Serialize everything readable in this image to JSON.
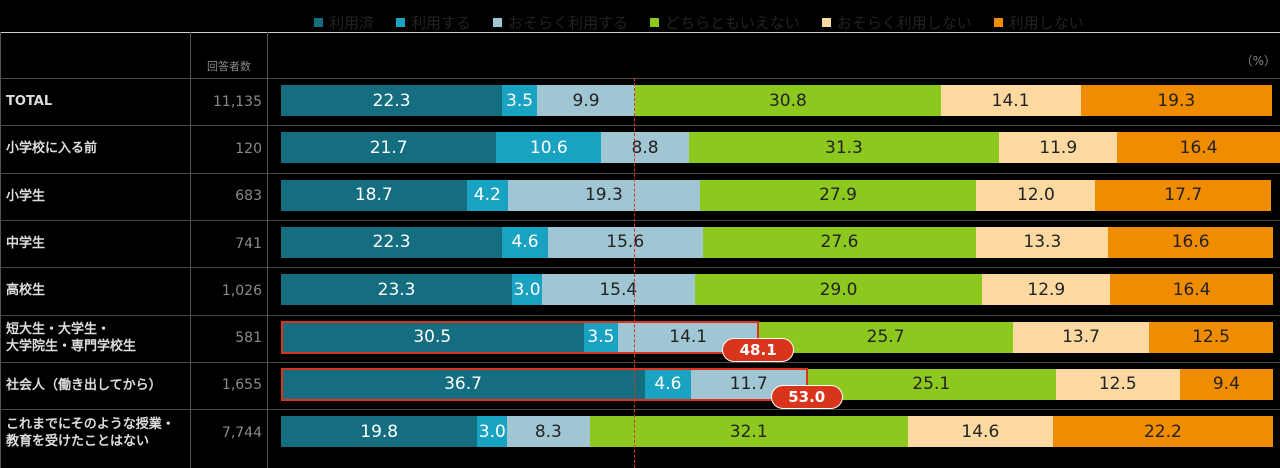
{
  "chart_data": {
    "type": "stacked_bar_horizontal",
    "count_header": "回答者数",
    "unit": "（%）",
    "categories": [
      "TOTAL",
      "小学校に入る前",
      "小学生",
      "中学生",
      "高校生",
      "短大生・大学生・\n大学院生・専門学校生",
      "社会人（働き出してから）",
      "これまでにそのような授業・\n教育を受けたことはない"
    ],
    "respondents": [
      {
        "value": 11135,
        "label": "11,135"
      },
      120,
      683,
      741,
      {
        "value": 1026,
        "label": "1,026"
      },
      581,
      {
        "value": 1655,
        "label": "1,655"
      },
      {
        "value": 7744,
        "label": "7,744"
      }
    ],
    "xlim": [
      0,
      100
    ],
    "series": [
      {
        "name": "利用済",
        "color": "#156d80",
        "values": [
          22.3,
          21.7,
          18.7,
          22.3,
          23.3,
          30.5,
          36.7,
          19.8
        ],
        "value_labels": [
          "22.3",
          "21.7",
          "18.7",
          "22.3",
          "23.3",
          "30.5",
          "36.7",
          "19.8"
        ]
      },
      {
        "name": "利用する",
        "color": "#1aa2c2",
        "values": [
          3.5,
          10.6,
          4.2,
          4.6,
          3.0,
          3.5,
          4.6,
          3.0
        ],
        "value_labels": [
          "3.5",
          "10.6",
          "4.2",
          "4.6",
          "3.0",
          "3.5",
          "4.6",
          "3.0"
        ]
      },
      {
        "name": "おそらく利用する",
        "color": "#9fc6d2",
        "values": [
          9.9,
          8.8,
          19.3,
          15.6,
          15.4,
          14.1,
          11.7,
          8.3
        ],
        "value_labels": [
          "9.9",
          "8.8",
          "19.3",
          "15.6",
          "15.4",
          "14.1",
          "11.7",
          "8.3"
        ]
      },
      {
        "name": "どちらともいえない",
        "color": "#8dc81e",
        "values": [
          30.8,
          31.3,
          27.9,
          27.6,
          29.0,
          25.7,
          25.1,
          32.1
        ],
        "value_labels": [
          "30.8",
          "31.3",
          "27.9",
          "27.6",
          "29.0",
          "25.7",
          "25.1",
          "32.1"
        ]
      },
      {
        "name": "おそらく利用しない",
        "color": "#fdd9a2",
        "values": [
          14.1,
          11.9,
          12.0,
          13.3,
          12.9,
          13.7,
          12.5,
          14.6
        ],
        "value_labels": [
          "14.1",
          "11.9",
          "12.0",
          "13.3",
          "12.9",
          "13.7",
          "12.5",
          "14.6"
        ]
      },
      {
        "name": "利用しない",
        "color": "#f08c00",
        "values": [
          19.3,
          16.4,
          17.7,
          16.6,
          16.4,
          12.5,
          9.4,
          22.2
        ],
        "value_labels": [
          "19.3",
          "16.4",
          "17.7",
          "16.6",
          "16.4",
          "12.5",
          "9.4",
          "22.2"
        ]
      }
    ],
    "annotations": [
      {
        "category": "短大生・大学生・\n大学院生・専門学校生",
        "value": 48.1
      },
      {
        "category": "社会人（働き出してから）",
        "value": {
          "value": 53.0,
          "label": "53.0"
        }
      }
    ]
  }
}
